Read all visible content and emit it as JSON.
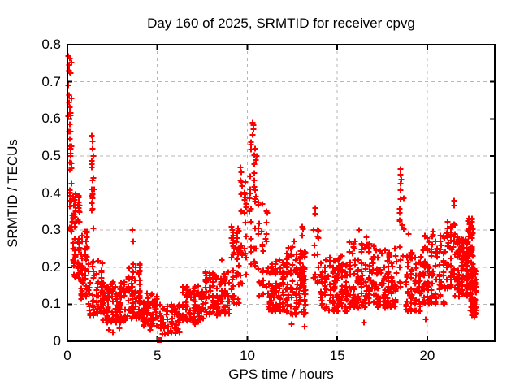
{
  "title": "Day 160 of 2025, SRMTID for receiver cpvg",
  "chart_data": {
    "type": "scatter",
    "title": "Day 160 of 2025, SRMTID for receiver cpvg",
    "xlabel": "GPS time / hours",
    "ylabel": "SRMTID / TECUs",
    "xlim": [
      0,
      23.75
    ],
    "ylim": [
      0,
      0.8
    ],
    "xticks": {
      "values": [
        0,
        5,
        10,
        15,
        20
      ],
      "labels": [
        "0",
        "5",
        "10",
        "15",
        "20"
      ]
    },
    "yticks": {
      "values": [
        0,
        0.1,
        0.2,
        0.3,
        0.4,
        0.5,
        0.6,
        0.7,
        0.8
      ],
      "labels": [
        "0",
        "0.1",
        "0.2",
        "0.3",
        "0.4",
        "0.5",
        "0.6",
        "0.7",
        "0.8"
      ]
    },
    "grid": true,
    "legend": "none",
    "marker": "plus",
    "marker_color": "#ff0000",
    "grid_color": "#b6b6b6",
    "axis_color": "#000000",
    "background_color": "#ffffff",
    "data_time_range_hours": [
      0,
      22.8
    ],
    "clusters_format": "[x_start_h, x_end_h, y_min_TECU, y_max_TECU, n_points, low_bias_exponent]",
    "clusters": [
      [
        0.02,
        0.35,
        0.28,
        0.77,
        30,
        1.0
      ],
      [
        0.25,
        0.75,
        0.17,
        0.4,
        55,
        1.2
      ],
      [
        0.7,
        1.15,
        0.11,
        0.3,
        45,
        1.2
      ],
      [
        1.25,
        1.55,
        0.26,
        0.5,
        12,
        1.0
      ],
      [
        1.1,
        2.0,
        0.07,
        0.22,
        60,
        1.3
      ],
      [
        1.9,
        3.3,
        0.05,
        0.16,
        120,
        1.3
      ],
      [
        3.3,
        4.1,
        0.06,
        0.21,
        75,
        1.3
      ],
      [
        4.1,
        5.05,
        0.04,
        0.13,
        65,
        1.2
      ],
      [
        5.05,
        6.3,
        0.02,
        0.1,
        55,
        1.1
      ],
      [
        6.3,
        7.6,
        0.05,
        0.15,
        80,
        1.2
      ],
      [
        7.6,
        9.05,
        0.07,
        0.19,
        100,
        1.3
      ],
      [
        9.05,
        9.6,
        0.1,
        0.31,
        40,
        1.1
      ],
      [
        9.55,
        10.0,
        0.14,
        0.45,
        28,
        1.0
      ],
      [
        10.05,
        10.55,
        0.18,
        0.565,
        30,
        0.9
      ],
      [
        10.55,
        11.15,
        0.12,
        0.38,
        28,
        1.1
      ],
      [
        11.1,
        12.1,
        0.08,
        0.22,
        85,
        1.3
      ],
      [
        12.1,
        13.3,
        0.07,
        0.26,
        110,
        1.35
      ],
      [
        13.0,
        13.15,
        0.15,
        0.31,
        10,
        1.0
      ],
      [
        13.65,
        14.0,
        0.12,
        0.34,
        14,
        1.0
      ],
      [
        14.0,
        15.6,
        0.08,
        0.24,
        120,
        1.35
      ],
      [
        15.6,
        17.1,
        0.09,
        0.27,
        120,
        1.3
      ],
      [
        17.1,
        18.35,
        0.09,
        0.25,
        100,
        1.3
      ],
      [
        18.4,
        18.75,
        0.14,
        0.44,
        16,
        0.9
      ],
      [
        18.75,
        19.7,
        0.08,
        0.24,
        75,
        1.25
      ],
      [
        19.7,
        21.05,
        0.1,
        0.29,
        110,
        1.25
      ],
      [
        21.05,
        21.6,
        0.12,
        0.33,
        45,
        1.1
      ],
      [
        21.6,
        22.3,
        0.12,
        0.28,
        90,
        1.2
      ],
      [
        22.15,
        22.6,
        0.14,
        0.33,
        45,
        1.1
      ],
      [
        22.35,
        22.78,
        0.07,
        0.2,
        55,
        1.1
      ]
    ],
    "peak_points": [
      [
        0.05,
        0.77
      ],
      [
        0.08,
        0.745
      ],
      [
        0.09,
        0.73
      ],
      [
        0.06,
        0.69
      ],
      [
        0.1,
        0.665
      ],
      [
        0.07,
        0.645
      ],
      [
        0.05,
        0.607
      ],
      [
        0.12,
        0.585
      ],
      [
        0.1,
        0.565
      ],
      [
        0.15,
        0.545
      ],
      [
        0.18,
        0.52
      ],
      [
        0.2,
        0.5
      ],
      [
        0.22,
        0.48
      ],
      [
        1.35,
        0.555
      ],
      [
        1.38,
        0.54
      ],
      [
        1.42,
        0.52
      ],
      [
        1.36,
        0.47
      ],
      [
        1.45,
        0.44
      ],
      [
        1.48,
        0.41
      ],
      [
        3.6,
        0.3
      ],
      [
        3.64,
        0.27
      ],
      [
        8.6,
        0.22
      ],
      [
        9.62,
        0.47
      ],
      [
        9.66,
        0.455
      ],
      [
        9.6,
        0.435
      ],
      [
        10.28,
        0.59
      ],
      [
        10.32,
        0.583
      ],
      [
        10.36,
        0.573
      ],
      [
        10.3,
        0.556
      ],
      [
        10.45,
        0.52
      ],
      [
        10.5,
        0.5
      ],
      [
        12.62,
        0.27
      ],
      [
        13.05,
        0.31
      ],
      [
        13.75,
        0.36
      ],
      [
        13.78,
        0.345
      ],
      [
        16.2,
        0.3
      ],
      [
        16.62,
        0.28
      ],
      [
        18.5,
        0.465
      ],
      [
        18.53,
        0.45
      ],
      [
        18.56,
        0.437
      ],
      [
        18.5,
        0.425
      ],
      [
        18.95,
        0.29
      ],
      [
        20.3,
        0.295
      ],
      [
        21.5,
        0.38
      ],
      [
        21.5,
        0.365
      ],
      [
        21.52,
        0.314
      ],
      [
        22.3,
        0.33
      ],
      [
        22.35,
        0.315
      ]
    ],
    "low_points": [
      [
        2.3,
        0.03
      ],
      [
        2.55,
        0.025
      ],
      [
        2.9,
        0.035
      ],
      [
        4.6,
        0.03
      ],
      [
        5.3,
        0.02
      ],
      [
        5.62,
        0.025
      ],
      [
        6.1,
        0.03
      ],
      [
        7.1,
        0.045
      ],
      [
        12.45,
        0.045
      ],
      [
        13.2,
        0.04
      ],
      [
        16.5,
        0.05
      ],
      [
        19.9,
        0.06
      ],
      [
        22.6,
        0.065
      ]
    ],
    "flag_point": {
      "x": 5.12,
      "y": 0.004,
      "marker": "filled-square"
    }
  }
}
